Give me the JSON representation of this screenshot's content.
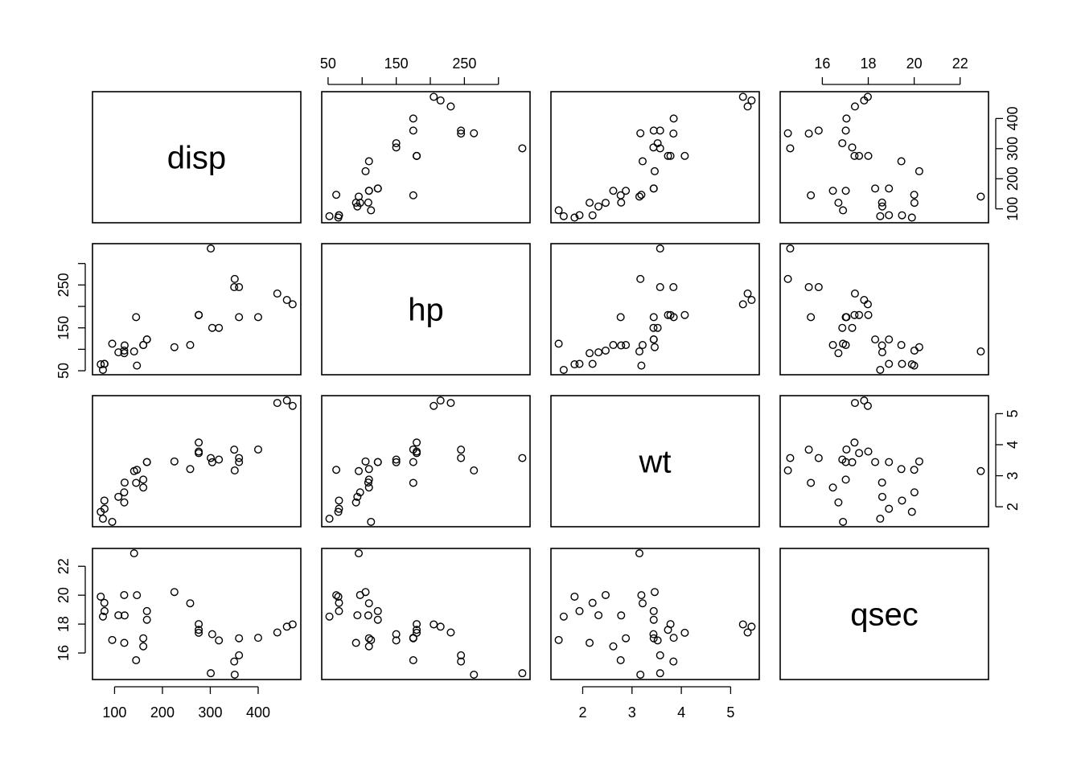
{
  "chart_data": {
    "type": "scatter",
    "kind": "scatterplot-matrix",
    "variables": [
      {
        "name": "disp",
        "label": "disp",
        "range": [
          70,
          473
        ],
        "ticks": [
          100,
          200,
          300,
          400
        ],
        "tick_labels": [
          "100",
          "200",
          "300",
          "400"
        ]
      },
      {
        "name": "hp",
        "label": "hp",
        "range": [
          52,
          335
        ],
        "ticks": [
          50,
          100,
          150,
          200,
          250,
          300
        ],
        "tick_labels": [
          "50",
          "",
          "150",
          "",
          "250",
          ""
        ]
      },
      {
        "name": "wt",
        "label": "wt",
        "range": [
          1.513,
          5.424
        ],
        "ticks": [
          2,
          3,
          4,
          5
        ],
        "tick_labels": [
          "2",
          "3",
          "4",
          "5"
        ]
      },
      {
        "name": "qsec",
        "label": "qsec",
        "range": [
          14.5,
          22.9
        ],
        "ticks": [
          16,
          18,
          20,
          22
        ],
        "tick_labels": [
          "16",
          "18",
          "20",
          "22"
        ]
      }
    ],
    "observations": [
      [
        160,
        110,
        2.62,
        16.46
      ],
      [
        160,
        110,
        2.875,
        17.02
      ],
      [
        108,
        93,
        2.32,
        18.61
      ],
      [
        258,
        110,
        3.215,
        19.44
      ],
      [
        360,
        175,
        3.44,
        17.02
      ],
      [
        225,
        105,
        3.46,
        20.22
      ],
      [
        360,
        245,
        3.57,
        15.84
      ],
      [
        146.7,
        62,
        3.19,
        20.0
      ],
      [
        140.8,
        95,
        3.15,
        22.9
      ],
      [
        167.6,
        123,
        3.44,
        18.3
      ],
      [
        167.6,
        123,
        3.44,
        18.9
      ],
      [
        275.8,
        180,
        4.07,
        17.4
      ],
      [
        275.8,
        180,
        3.73,
        17.6
      ],
      [
        275.8,
        180,
        3.78,
        18.0
      ],
      [
        472,
        205,
        5.25,
        17.98
      ],
      [
        460,
        215,
        5.424,
        17.82
      ],
      [
        440,
        230,
        5.345,
        17.42
      ],
      [
        78.7,
        66,
        2.2,
        19.47
      ],
      [
        75.7,
        52,
        1.615,
        18.52
      ],
      [
        71.1,
        65,
        1.835,
        19.9
      ],
      [
        120.1,
        97,
        2.465,
        20.01
      ],
      [
        318,
        150,
        3.52,
        16.87
      ],
      [
        304,
        150,
        3.435,
        17.3
      ],
      [
        350,
        245,
        3.84,
        15.41
      ],
      [
        400,
        175,
        3.845,
        17.05
      ],
      [
        79,
        66,
        1.935,
        18.9
      ],
      [
        120.3,
        91,
        2.14,
        16.7
      ],
      [
        95.1,
        113,
        1.513,
        16.9
      ],
      [
        351,
        264,
        3.17,
        14.5
      ],
      [
        145,
        175,
        2.77,
        15.5
      ],
      [
        301,
        335,
        3.57,
        14.6
      ],
      [
        121,
        109,
        2.78,
        18.6
      ]
    ],
    "axis_placement": {
      "top": [
        1,
        3
      ],
      "bottom": [
        0,
        2
      ],
      "left": [
        1,
        3
      ],
      "right": [
        0,
        2
      ]
    },
    "title": "",
    "grid": false,
    "legend": "none"
  }
}
